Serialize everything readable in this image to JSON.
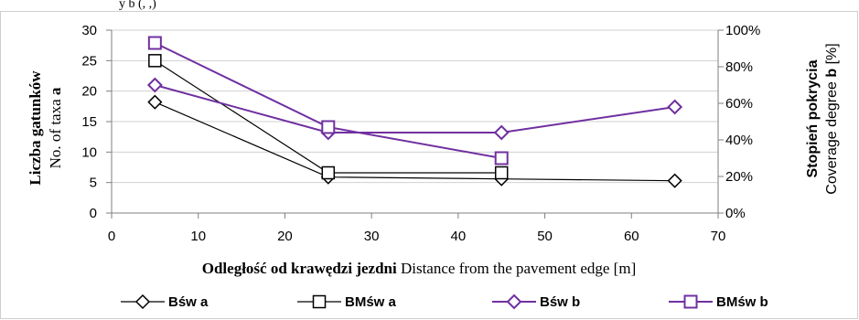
{
  "header_fragment": "y b (, ,)",
  "chart_data": {
    "type": "line",
    "xlabel_bold": "Odległość od krawędzi jezdni",
    "xlabel_normal": "Distance from the pavement edge [m]",
    "ylabel_left_bold": "Liczba gatunków",
    "ylabel_left_normal": "No. of taxa ",
    "ylabel_left_suffix": "a",
    "ylabel_right_bold": "Stopień pokrycia",
    "ylabel_right_normal": "Coverage  degree ",
    "ylabel_right_bold_suffix": "b",
    "ylabel_right_unit": " [%]",
    "xlim": [
      0,
      70
    ],
    "xticks": [
      "0",
      "10",
      "20",
      "30",
      "40",
      "50",
      "60",
      "70"
    ],
    "ylim_left": [
      0,
      30
    ],
    "yticks_left": [
      "0",
      "5",
      "10",
      "15",
      "20",
      "25",
      "30"
    ],
    "ylim_right": [
      0,
      100
    ],
    "yticks_right": [
      "0%",
      "20%",
      "40%",
      "60%",
      "80%",
      "100%"
    ],
    "grid": true,
    "legend_position": "bottom",
    "series": [
      {
        "name": "Bśw a",
        "axis": "left",
        "marker": "diamond",
        "color": "#000000",
        "x": [
          5,
          25,
          45,
          65
        ],
        "y": [
          18.2,
          5.9,
          5.6,
          5.3
        ]
      },
      {
        "name": "BMśw a",
        "axis": "left",
        "marker": "square",
        "color": "#000000",
        "x": [
          5,
          25,
          45
        ],
        "y": [
          25,
          6.6,
          6.6
        ]
      },
      {
        "name": "Bśw b",
        "axis": "right",
        "marker": "diamond",
        "color": "#7030A0",
        "x": [
          5,
          25,
          45,
          65
        ],
        "y": [
          70,
          44,
          44,
          58
        ]
      },
      {
        "name": "BMśw b",
        "axis": "right",
        "marker": "square",
        "color": "#7030A0",
        "x": [
          5,
          25,
          45
        ],
        "y": [
          93,
          47,
          30
        ]
      }
    ]
  }
}
